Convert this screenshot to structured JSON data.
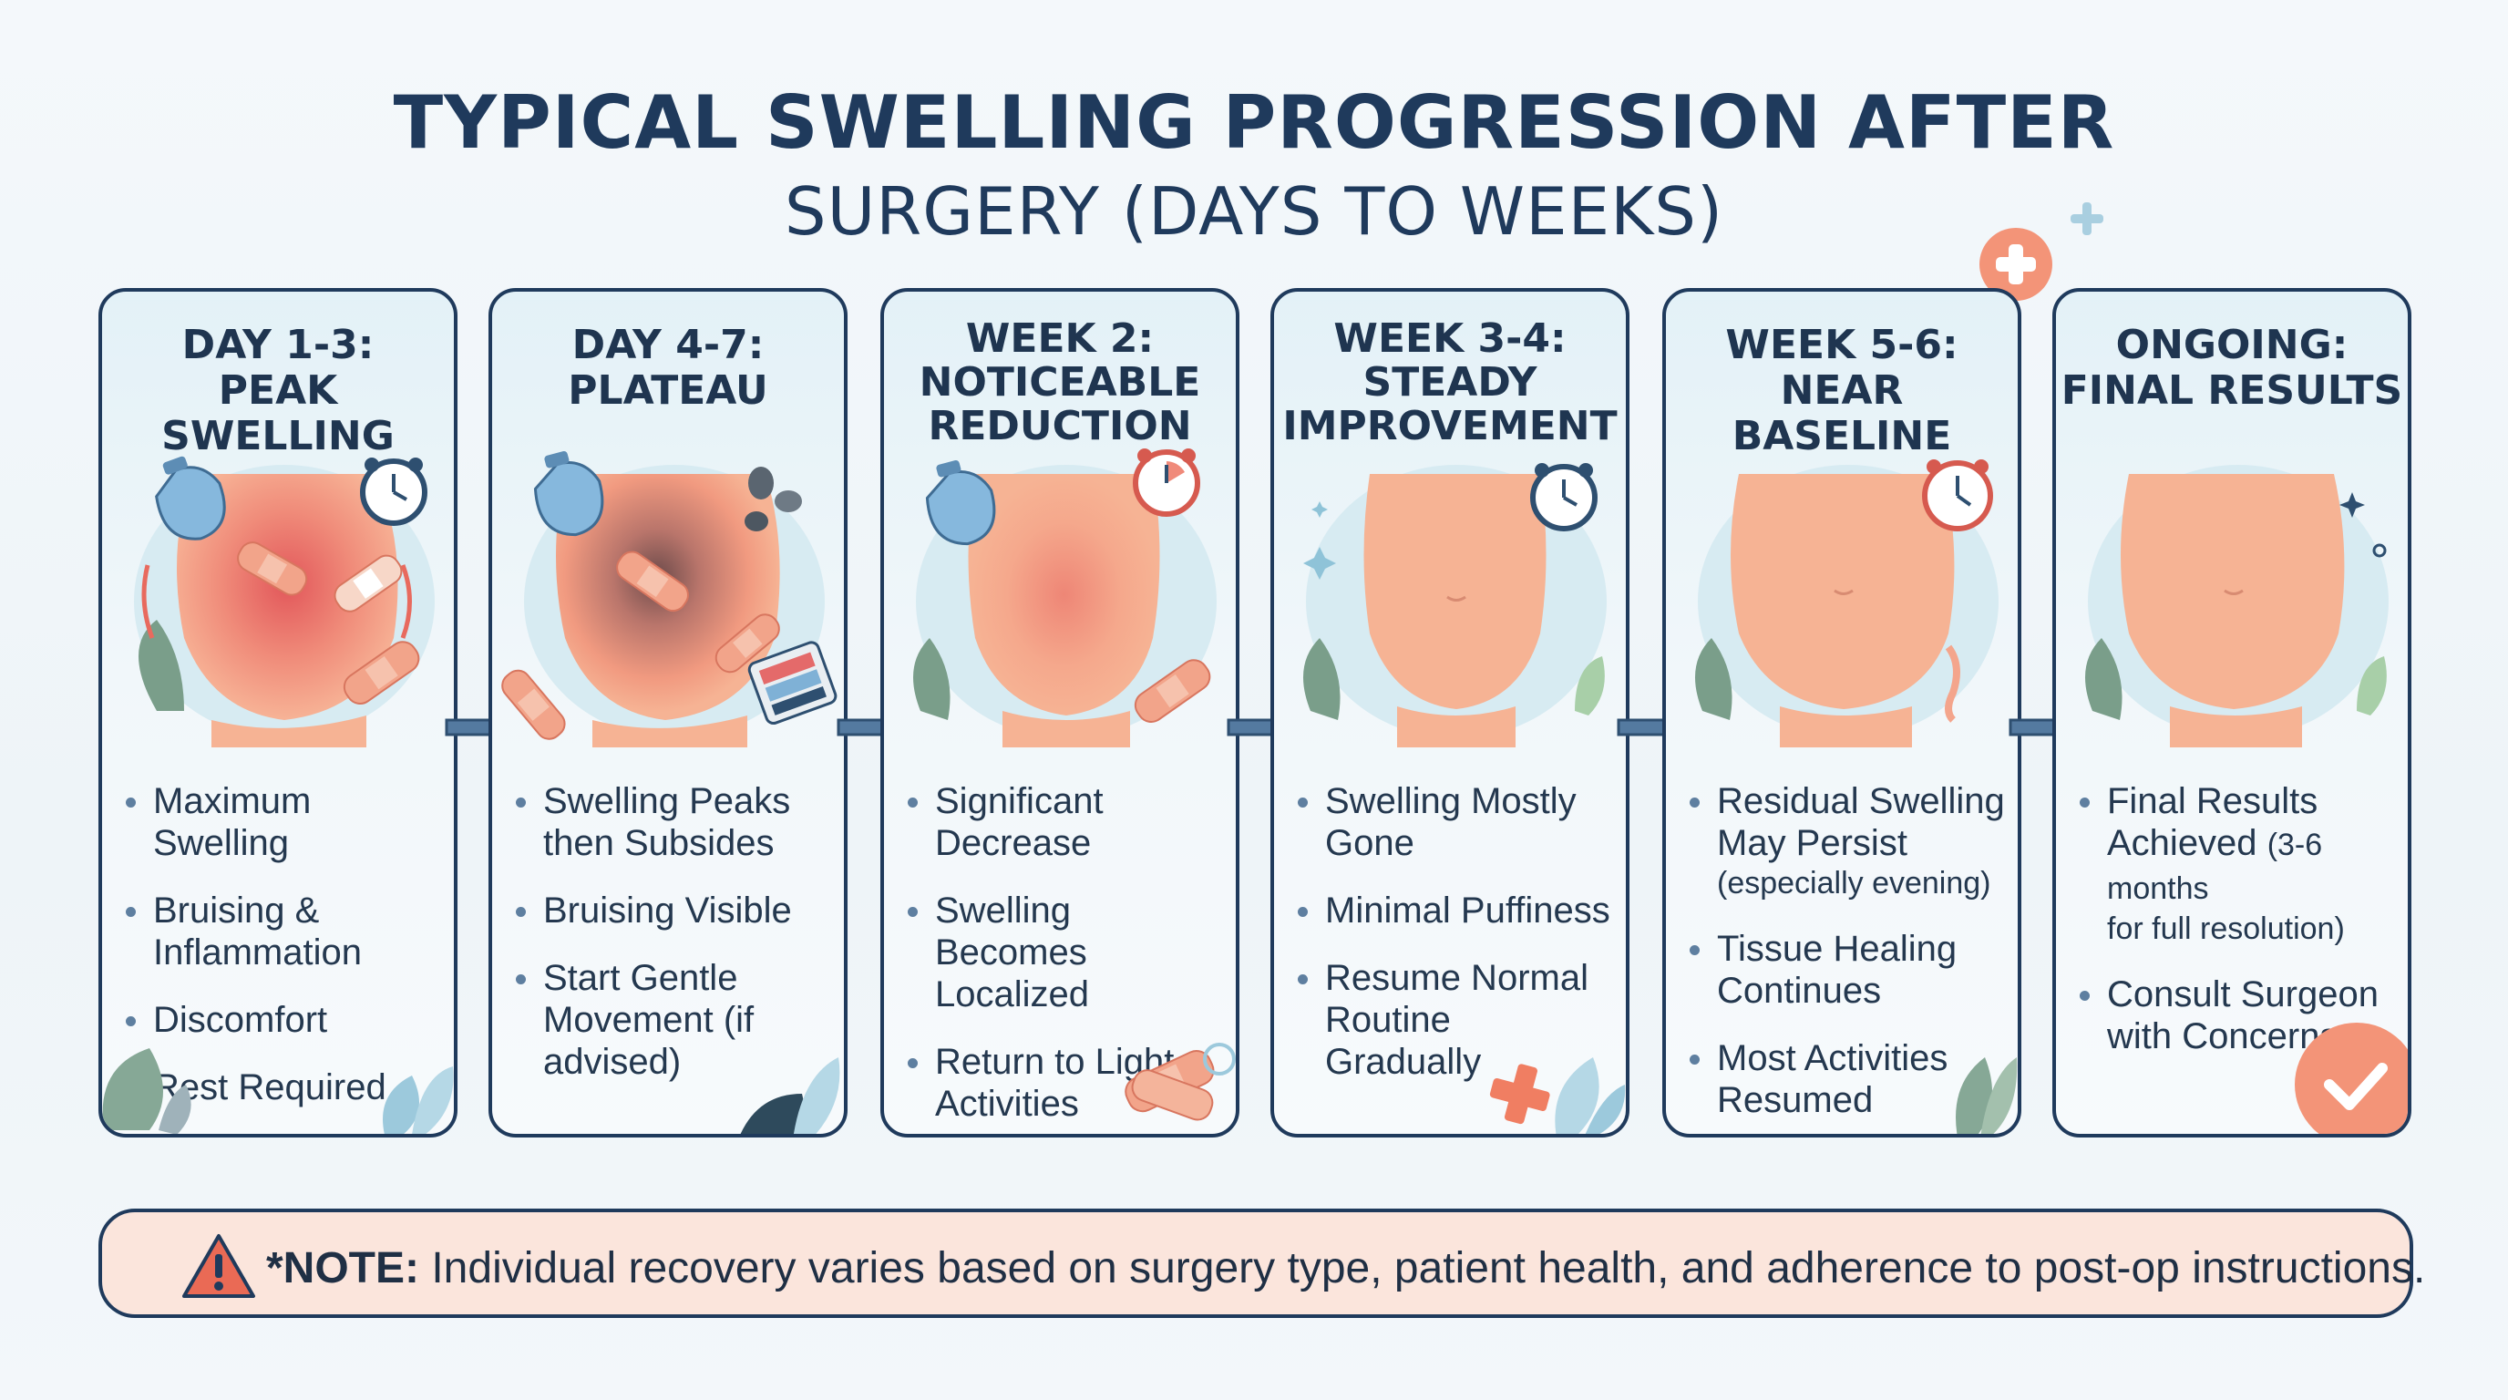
{
  "title": {
    "line1": "TYPICAL SWELLING PROGRESSION AFTER",
    "line2": "SURGERY (DAYS TO WEEKS)"
  },
  "colors": {
    "navy": "#1f3a5c",
    "skin": "#f6b394",
    "redness": "#e25a5a",
    "bruise": "#6b4a4a",
    "ice_pack": "#7fb1d6",
    "leaf": "#7a9e8a",
    "note_bg": "#fbe5dc",
    "accent": "#f07e62"
  },
  "stages": [
    {
      "head_line1": "DAY 1-3:",
      "head_line2": "PEAK SWELLING",
      "head_line3": "",
      "items": [
        "Maximum Swelling",
        "Bruising & Inflammation",
        "Discomfort",
        "Rest Required"
      ]
    },
    {
      "head_line1": "DAY 4-7:",
      "head_line2": "PLATEAU",
      "head_line3": "",
      "items": [
        "Swelling Peaks then Subsides",
        "Bruising Visible",
        "Start Gentle Movement (if advised)"
      ]
    },
    {
      "head_line1": "WEEK 2:",
      "head_line2": "NOTICEABLE",
      "head_line3": "REDUCTION",
      "items": [
        "Significant Decrease",
        "Swelling Becomes Localized",
        "Return to Light Activities"
      ]
    },
    {
      "head_line1": "WEEK 3-4:",
      "head_line2": "STEADY",
      "head_line3": "IMPROVEMENT",
      "items": [
        "Swelling Mostly Gone",
        "Minimal Puffiness",
        "Resume Normal Routine Gradually"
      ]
    },
    {
      "head_line1": "WEEK 5-6:",
      "head_line2": "NEAR BASELINE",
      "head_line3": "",
      "items": [
        "Residual Swelling May Persist",
        "(especially evening)",
        "Tissue Healing Continues",
        "Most Activities Resumed"
      ]
    },
    {
      "head_line1": "ONGOING:",
      "head_line2": "FINAL RESULTS",
      "head_line3": "",
      "items": [
        "Final Results Achieved",
        "(3-6 months",
        "for full resolution)",
        "Consult Surgeon with Concerns"
      ]
    }
  ],
  "note": {
    "label": "*NOTE:",
    "text": " Individual recovery varies based on surgery type, patient health, and adherence to post-op instructions."
  }
}
